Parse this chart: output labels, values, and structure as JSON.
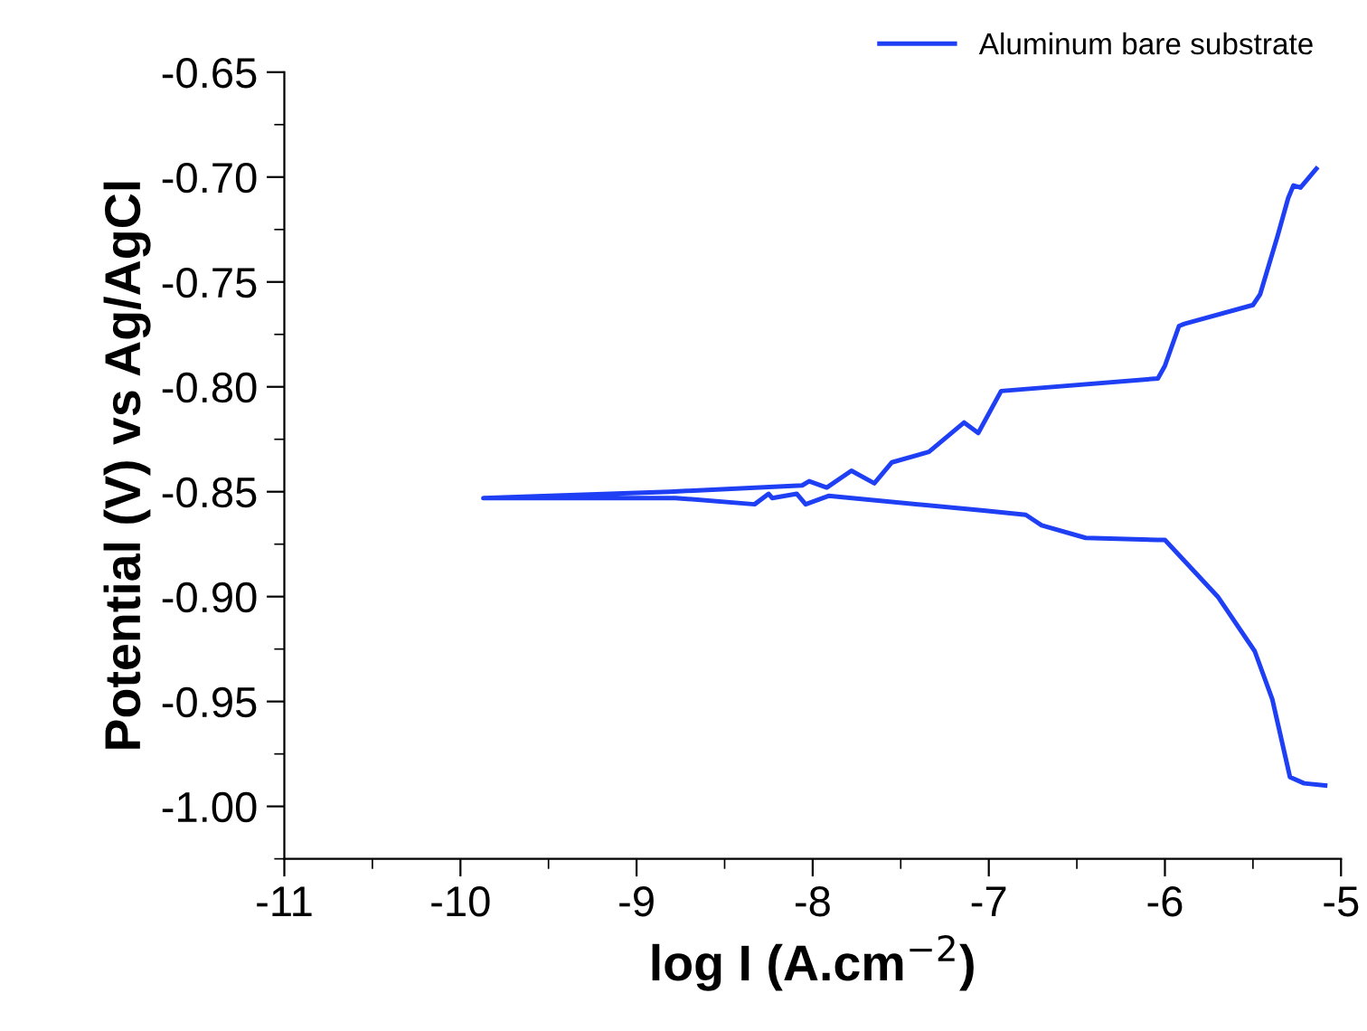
{
  "chart_data": {
    "type": "line",
    "xlabel": "log I (A.cm$^{−2}$)",
    "ylabel": "Potential (V) vs Ag/AgCl",
    "xlim": [
      -11,
      -5
    ],
    "ylim": [
      -1.025,
      -0.65
    ],
    "xticks": [
      -11,
      -10,
      -9,
      -8,
      -7,
      -6,
      -5
    ],
    "yticks": [
      {
        "value": -0.65,
        "label": "-0.65"
      },
      {
        "value": -0.7,
        "label": "-0.70"
      },
      {
        "value": -0.75,
        "label": "-0.75"
      },
      {
        "value": -0.8,
        "label": "-0.80"
      },
      {
        "value": -0.85,
        "label": "-0.85"
      },
      {
        "value": -0.9,
        "label": "-0.90"
      },
      {
        "value": -0.95,
        "label": "-0.95"
      },
      {
        "value": -1.0,
        "label": "-1.00"
      }
    ],
    "grid": false,
    "legend": "top right",
    "marker": "none",
    "line_style": "solid",
    "series": [
      {
        "name": "Aluminum bare substrate",
        "color": "#1f3ff5",
        "x": [
          -5.09,
          -5.21,
          -5.29,
          -5.39,
          -5.49,
          -5.7,
          -6.0,
          -6.04,
          -6.45,
          -6.7,
          -6.79,
          -7.03,
          -7.91,
          -8.04,
          -8.09,
          -8.23,
          -8.25,
          -8.33,
          -8.78,
          -9.87,
          -8.81,
          -8.06,
          -8.02,
          -7.92,
          -7.78,
          -7.65,
          -7.55,
          -7.34,
          -7.14,
          -7.06,
          -6.93,
          -6.04,
          -6.0,
          -5.92,
          -5.89,
          -5.5,
          -5.46,
          -5.36,
          -5.3,
          -5.27,
          -5.23,
          -5.14
        ],
        "values": [
          -0.99,
          -0.989,
          -0.986,
          -0.949,
          -0.926,
          -0.9,
          -0.873,
          -0.873,
          -0.872,
          -0.866,
          -0.861,
          -0.859,
          -0.852,
          -0.856,
          -0.851,
          -0.853,
          -0.851,
          -0.856,
          -0.853,
          -0.853,
          -0.85,
          -0.847,
          -0.845,
          -0.848,
          -0.84,
          -0.846,
          -0.836,
          -0.831,
          -0.817,
          -0.822,
          -0.802,
          -0.796,
          -0.79,
          -0.771,
          -0.77,
          -0.761,
          -0.756,
          -0.728,
          -0.71,
          -0.704,
          -0.705,
          -0.696
        ]
      }
    ]
  }
}
